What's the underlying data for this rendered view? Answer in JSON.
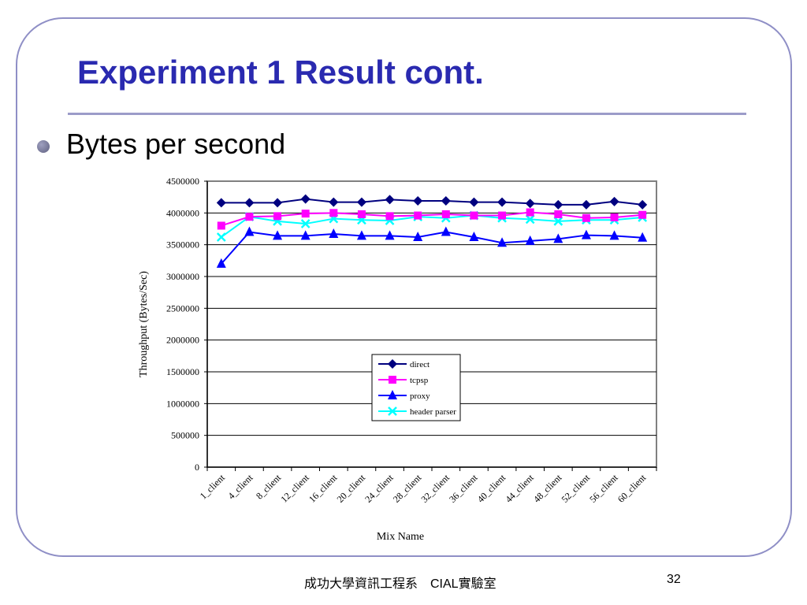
{
  "slide": {
    "title": "Experiment 1 Result cont.",
    "bullet": "Bytes per second",
    "footer_center": "成功大學資訊工程系　CIAL實驗室",
    "page_number": "32"
  },
  "chart_data": {
    "type": "line",
    "title": "",
    "xlabel": "Mix Name",
    "ylabel": "Throughput (Bytes/Sec)",
    "ylim": [
      0,
      4500000
    ],
    "yticks": [
      "0",
      "500000",
      "1000000",
      "1500000",
      "2000000",
      "2500000",
      "3000000",
      "3500000",
      "4000000",
      "4500000"
    ],
    "grid": "horizontal",
    "legend_position": "center",
    "categories": [
      "1_client",
      "4_client",
      "8_client",
      "12_client",
      "16_client",
      "20_client",
      "24_client",
      "28_client",
      "32_client",
      "36_client",
      "40_client",
      "44_client",
      "48_client",
      "52_client",
      "56_client",
      "60_client"
    ],
    "series": [
      {
        "name": "direct",
        "color": "#00007f",
        "marker": "diamond",
        "values": [
          4160000,
          4160000,
          4160000,
          4220000,
          4170000,
          4170000,
          4210000,
          4190000,
          4190000,
          4170000,
          4170000,
          4150000,
          4130000,
          4130000,
          4180000,
          4130000
        ]
      },
      {
        "name": "tcpsp",
        "color": "#ff00ff",
        "marker": "square",
        "values": [
          3800000,
          3940000,
          3950000,
          3990000,
          4000000,
          3980000,
          3950000,
          3960000,
          3980000,
          3960000,
          3960000,
          4010000,
          3980000,
          3920000,
          3930000,
          3970000
        ]
      },
      {
        "name": "proxy",
        "color": "#0000ff",
        "marker": "triangle",
        "values": [
          3200000,
          3700000,
          3640000,
          3640000,
          3670000,
          3640000,
          3640000,
          3620000,
          3700000,
          3620000,
          3530000,
          3560000,
          3590000,
          3650000,
          3640000,
          3610000
        ]
      },
      {
        "name": "header parser",
        "color": "#00ffff",
        "marker": "x",
        "values": [
          3620000,
          3940000,
          3870000,
          3830000,
          3910000,
          3890000,
          3880000,
          3940000,
          3920000,
          3960000,
          3920000,
          3900000,
          3870000,
          3890000,
          3890000,
          3930000
        ]
      }
    ]
  }
}
